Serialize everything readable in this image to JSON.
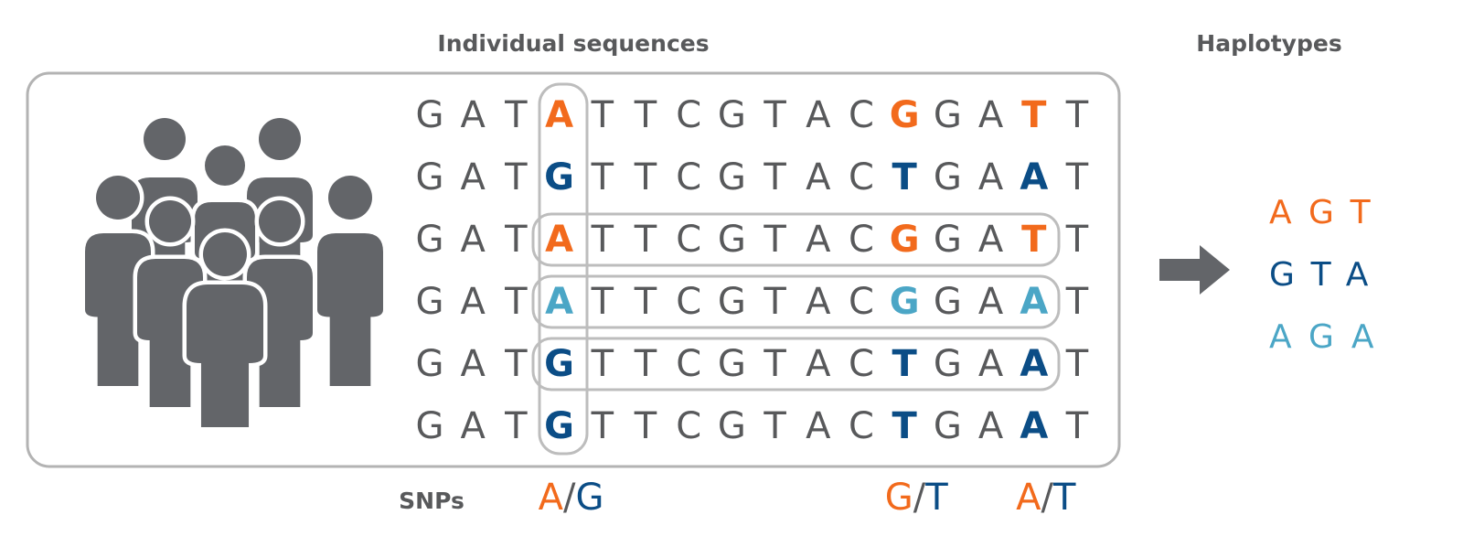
{
  "titles": {
    "sequences": "Individual sequences",
    "haplotypes": "Haplotypes"
  },
  "colors": {
    "gray": "#58595b",
    "orange": "#f26a1c",
    "dark_blue": "#0b4d86",
    "light_blue": "#4ba6c6",
    "box": "#bdbdbd"
  },
  "sequences": [
    {
      "bases": "GATATTCGTACGGATT",
      "highlight": "orange",
      "row_boxed": false
    },
    {
      "bases": "GATGTTCGTACTGAAT",
      "highlight": "dark_blue",
      "row_boxed": false
    },
    {
      "bases": "GATATTCGTACGGATT",
      "highlight": "orange",
      "row_boxed": true
    },
    {
      "bases": "GATATTCGTACGGAAT",
      "highlight": "light_blue",
      "row_boxed": true
    },
    {
      "bases": "GATGTTCGTACTGAAT",
      "highlight": "dark_blue",
      "row_boxed": true
    },
    {
      "bases": "GATGTTCGTACTGAAT",
      "highlight": "dark_blue",
      "row_boxed": false
    }
  ],
  "snp_positions": [
    3,
    11,
    14
  ],
  "snps": {
    "label": "SNPs",
    "items": [
      {
        "a": "A",
        "b": "G"
      },
      {
        "a": "G",
        "b": "T"
      },
      {
        "a": "A",
        "b": "T"
      }
    ],
    "separator": "/"
  },
  "haplotypes": [
    {
      "bases": "AGT",
      "color": "orange"
    },
    {
      "bases": "GTA",
      "color": "dark_blue"
    },
    {
      "bases": "AGA",
      "color": "light_blue"
    }
  ],
  "icons": {
    "people": "group-of-people-icon",
    "arrow": "arrow-right-icon"
  }
}
